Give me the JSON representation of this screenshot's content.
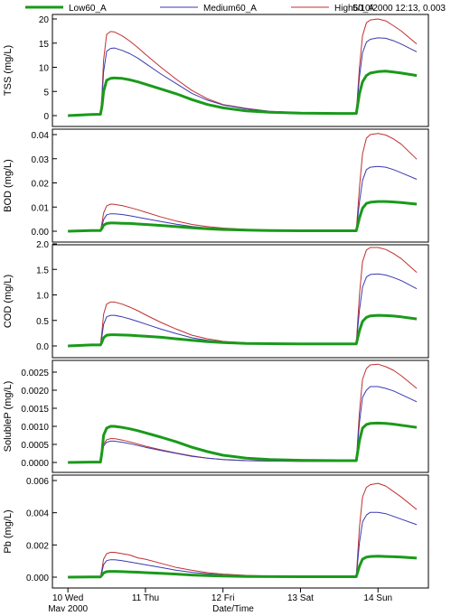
{
  "readout": "5/10/2000 12:13, 0.003",
  "legend": [
    {
      "name": "Low60_A",
      "color": "#1a9a1a"
    },
    {
      "name": "Medium60_A",
      "color": "#3a3ab0"
    },
    {
      "name": "High60_A",
      "color": "#c03030"
    }
  ],
  "chart_data": [
    {
      "type": "line",
      "ylabel": "TSS (mg/L)",
      "ylim": [
        0,
        20
      ],
      "yticks": [
        "0",
        "5",
        "10",
        "15",
        "20"
      ],
      "x": [
        10.0,
        10.3,
        10.42,
        10.44,
        10.46,
        10.5,
        10.55,
        10.6,
        10.7,
        10.8,
        10.9,
        11.0,
        11.2,
        11.4,
        11.6,
        11.8,
        12.0,
        12.3,
        12.6,
        13.0,
        13.5,
        13.72,
        13.76,
        13.8,
        13.85,
        13.9,
        14.0,
        14.1,
        14.2,
        14.3,
        14.5
      ],
      "series": [
        {
          "name": "Low60_A",
          "values": [
            0,
            0.25,
            0.28,
            2.0,
            5.0,
            7.3,
            7.7,
            7.8,
            7.7,
            7.4,
            7.0,
            6.5,
            5.5,
            4.5,
            3.3,
            2.3,
            1.6,
            1.0,
            0.7,
            0.5,
            0.45,
            0.45,
            4.5,
            7.0,
            8.3,
            8.8,
            9.1,
            9.2,
            9.0,
            8.8,
            8.3
          ]
        },
        {
          "name": "Medium60_A",
          "values": [
            0,
            0.25,
            0.3,
            3.5,
            9.0,
            13.3,
            13.9,
            14.0,
            13.5,
            12.8,
            11.9,
            10.8,
            8.6,
            6.6,
            4.6,
            3.2,
            2.2,
            1.4,
            0.9,
            0.6,
            0.45,
            0.45,
            8.0,
            13.0,
            15.2,
            15.8,
            16.1,
            16.0,
            15.5,
            14.8,
            13.2
          ]
        },
        {
          "name": "High60_A",
          "values": [
            0,
            0.25,
            0.3,
            4.5,
            11.5,
            16.8,
            17.4,
            17.3,
            16.5,
            15.4,
            14.1,
            12.7,
            10.0,
            7.5,
            5.2,
            3.5,
            2.3,
            1.5,
            0.9,
            0.6,
            0.45,
            0.45,
            10.0,
            16.5,
            19.2,
            19.8,
            20.0,
            19.6,
            18.6,
            17.5,
            14.8
          ]
        }
      ]
    },
    {
      "type": "line",
      "ylabel": "BOD (mg/L)",
      "ylim": [
        0,
        0.04
      ],
      "yticks": [
        "0.00",
        "0.01",
        "0.02",
        "0.03",
        "0.04"
      ],
      "x": [
        10.0,
        10.3,
        10.42,
        10.44,
        10.46,
        10.5,
        10.55,
        10.6,
        10.7,
        10.8,
        10.9,
        11.0,
        11.2,
        11.4,
        11.6,
        11.8,
        12.0,
        12.3,
        12.6,
        13.0,
        13.5,
        13.72,
        13.76,
        13.8,
        13.85,
        13.9,
        14.0,
        14.1,
        14.2,
        14.3,
        14.5
      ],
      "series": [
        {
          "name": "Low60_A",
          "values": [
            0,
            0.0003,
            0.0003,
            0.0012,
            0.0025,
            0.0032,
            0.0034,
            0.0034,
            0.0033,
            0.0032,
            0.003,
            0.0028,
            0.0024,
            0.0019,
            0.0014,
            0.001,
            0.0007,
            0.0005,
            0.0003,
            0.0002,
            0.0002,
            0.0002,
            0.0055,
            0.0095,
            0.0115,
            0.012,
            0.0123,
            0.0123,
            0.0121,
            0.0119,
            0.0112
          ]
        },
        {
          "name": "Medium60_A",
          "values": [
            0,
            0.0003,
            0.0003,
            0.0022,
            0.0048,
            0.0068,
            0.0072,
            0.0072,
            0.0069,
            0.0064,
            0.0058,
            0.0052,
            0.004,
            0.0029,
            0.002,
            0.0014,
            0.001,
            0.0006,
            0.0004,
            0.0002,
            0.0002,
            0.0002,
            0.012,
            0.021,
            0.0255,
            0.0265,
            0.0268,
            0.0265,
            0.0255,
            0.0242,
            0.0215
          ]
        },
        {
          "name": "High60_A",
          "values": [
            0,
            0.0003,
            0.0003,
            0.0035,
            0.0075,
            0.0105,
            0.0112,
            0.0111,
            0.0106,
            0.0098,
            0.0089,
            0.0079,
            0.0059,
            0.0042,
            0.0028,
            0.0019,
            0.0013,
            0.0008,
            0.0005,
            0.0003,
            0.0002,
            0.0002,
            0.018,
            0.032,
            0.0385,
            0.04,
            0.0405,
            0.0398,
            0.0382,
            0.036,
            0.0298
          ]
        }
      ]
    },
    {
      "type": "line",
      "ylabel": "COD (mg/L)",
      "ylim": [
        0,
        2.0
      ],
      "yticks": [
        "0.0",
        "0.5",
        "1.0",
        "1.5",
        "2.0"
      ],
      "x": [
        10.0,
        10.3,
        10.42,
        10.44,
        10.46,
        10.5,
        10.55,
        10.6,
        10.7,
        10.8,
        10.9,
        11.0,
        11.2,
        11.4,
        11.6,
        11.8,
        12.0,
        12.3,
        12.6,
        13.0,
        13.5,
        13.72,
        13.76,
        13.8,
        13.85,
        13.9,
        14.0,
        14.1,
        14.2,
        14.3,
        14.5
      ],
      "series": [
        {
          "name": "Low60_A",
          "values": [
            0,
            0.02,
            0.02,
            0.08,
            0.16,
            0.21,
            0.22,
            0.22,
            0.215,
            0.21,
            0.2,
            0.19,
            0.17,
            0.14,
            0.11,
            0.085,
            0.065,
            0.05,
            0.045,
            0.04,
            0.04,
            0.04,
            0.3,
            0.48,
            0.56,
            0.59,
            0.6,
            0.595,
            0.585,
            0.57,
            0.53
          ]
        },
        {
          "name": "Medium60_A",
          "values": [
            0,
            0.02,
            0.02,
            0.2,
            0.42,
            0.57,
            0.6,
            0.6,
            0.57,
            0.53,
            0.48,
            0.43,
            0.33,
            0.24,
            0.16,
            0.11,
            0.08,
            0.055,
            0.045,
            0.04,
            0.04,
            0.04,
            0.7,
            1.15,
            1.35,
            1.4,
            1.41,
            1.39,
            1.34,
            1.28,
            1.12
          ]
        },
        {
          "name": "High60_A",
          "values": [
            0,
            0.02,
            0.02,
            0.3,
            0.62,
            0.82,
            0.86,
            0.86,
            0.82,
            0.76,
            0.69,
            0.61,
            0.46,
            0.33,
            0.21,
            0.14,
            0.09,
            0.06,
            0.045,
            0.04,
            0.04,
            0.04,
            1.0,
            1.65,
            1.88,
            1.93,
            1.93,
            1.89,
            1.81,
            1.71,
            1.44
          ]
        }
      ]
    },
    {
      "type": "line",
      "ylabel": "SolubleP (mg/L)",
      "ylim": [
        0,
        0.0028
      ],
      "yticks": [
        "0.0000",
        "0.0005",
        "0.0010",
        "0.0015",
        "0.0020",
        "0.0025"
      ],
      "x": [
        10.0,
        10.3,
        10.42,
        10.44,
        10.46,
        10.5,
        10.55,
        10.6,
        10.7,
        10.8,
        10.9,
        11.0,
        11.2,
        11.4,
        11.6,
        11.8,
        12.0,
        12.3,
        12.6,
        13.0,
        13.5,
        13.72,
        13.76,
        13.8,
        13.85,
        13.9,
        14.0,
        14.1,
        14.2,
        14.3,
        14.5
      ],
      "series": [
        {
          "name": "Low60_A",
          "values": [
            0,
            1e-05,
            1e-05,
            0.0003,
            0.00075,
            0.00095,
            0.001,
            0.001,
            0.00097,
            0.00093,
            0.00088,
            0.00082,
            0.0007,
            0.00057,
            0.00042,
            0.0003,
            0.0002,
            0.00012,
            8e-05,
            6e-05,
            5e-05,
            5e-05,
            0.0006,
            0.00095,
            0.00105,
            0.00108,
            0.00109,
            0.00108,
            0.00106,
            0.00103,
            0.00097
          ]
        },
        {
          "name": "Medium60_A",
          "values": [
            0,
            1e-05,
            1e-05,
            0.0002,
            0.00045,
            0.00056,
            0.00059,
            0.00059,
            0.00056,
            0.00052,
            0.00047,
            0.00042,
            0.00033,
            0.00025,
            0.00017,
            0.00012,
            8e-05,
            5e-05,
            4e-05,
            3e-05,
            3e-05,
            3e-05,
            0.0011,
            0.0018,
            0.002,
            0.0021,
            0.0021,
            0.00205,
            0.00198,
            0.00188,
            0.00168
          ]
        },
        {
          "name": "High60_A",
          "values": [
            0,
            1e-05,
            1e-05,
            0.00022,
            0.0005,
            0.00063,
            0.00066,
            0.00066,
            0.00062,
            0.00057,
            0.00051,
            0.00045,
            0.00035,
            0.00026,
            0.00018,
            0.00012,
            8e-05,
            5e-05,
            4e-05,
            3e-05,
            3e-05,
            3e-05,
            0.0014,
            0.0023,
            0.0026,
            0.0027,
            0.00272,
            0.00265,
            0.00255,
            0.0024,
            0.00205
          ]
        }
      ]
    },
    {
      "type": "line",
      "ylabel": "Pb (mg/L)",
      "ylim": [
        0,
        0.007
      ],
      "yticks": [
        "0.000",
        "0.002",
        "0.004",
        "0.006"
      ],
      "xlabel": "Date/Time",
      "xticks": [
        {
          "x": 10,
          "label": "10 Wed"
        },
        {
          "x": 11,
          "label": "11 Thu"
        },
        {
          "x": 12,
          "label": "12 Fri"
        },
        {
          "x": 13,
          "label": "13 Sat"
        },
        {
          "x": 14,
          "label": "14 Sun"
        }
      ],
      "xsublabel": "May 2000",
      "x": [
        10.0,
        10.3,
        10.42,
        10.44,
        10.46,
        10.5,
        10.55,
        10.6,
        10.7,
        10.8,
        10.9,
        11.0,
        11.2,
        11.4,
        11.6,
        11.8,
        12.0,
        12.3,
        12.6,
        13.0,
        13.5,
        13.72,
        13.76,
        13.8,
        13.85,
        13.9,
        14.0,
        14.1,
        14.2,
        14.3,
        14.5
      ],
      "series": [
        {
          "name": "Low60_A",
          "values": [
            0,
            2e-05,
            2e-05,
            0.00015,
            0.0003,
            0.0004,
            0.00042,
            0.00042,
            0.0004,
            0.00038,
            0.00036,
            0.00033,
            0.00028,
            0.00022,
            0.00016,
            0.00011,
            8e-05,
            5e-05,
            4e-05,
            3e-05,
            3e-05,
            3e-05,
            0.0008,
            0.0013,
            0.00145,
            0.0015,
            0.00152,
            0.0015,
            0.00148,
            0.00145,
            0.00138
          ]
        },
        {
          "name": "Medium60_A",
          "values": [
            0,
            2e-05,
            2e-05,
            0.0004,
            0.0009,
            0.0012,
            0.00126,
            0.00126,
            0.0012,
            0.0011,
            0.001,
            0.0009,
            0.0007,
            0.0005,
            0.00035,
            0.00024,
            0.00016,
            0.0001,
            6e-05,
            4e-05,
            3e-05,
            3e-05,
            0.0025,
            0.004,
            0.0045,
            0.0047,
            0.0047,
            0.0046,
            0.0044,
            0.0042,
            0.0038
          ]
        },
        {
          "name": "High60_A",
          "values": [
            0,
            2e-05,
            2e-05,
            0.0006,
            0.0013,
            0.0017,
            0.0018,
            0.0018,
            0.0017,
            0.0016,
            0.0014,
            0.0013,
            0.001,
            0.0007,
            0.0005,
            0.00033,
            0.00022,
            0.00013,
            8e-05,
            5e-05,
            3e-05,
            3e-05,
            0.0036,
            0.0058,
            0.0065,
            0.0067,
            0.0068,
            0.0066,
            0.0062,
            0.0058,
            0.0049
          ]
        }
      ]
    }
  ]
}
